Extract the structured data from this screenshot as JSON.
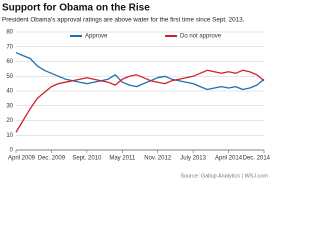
{
  "chart_data": {
    "type": "line",
    "title": "Support for Obama on the Rise",
    "subtitle": "President Obama's approval ratings are above water for the first time since Sept. 2013.",
    "source": "Source: Gallup Analytics | WSJ.com",
    "categories": [
      "April 2009",
      null,
      null,
      null,
      null,
      "Dec. 2009",
      null,
      null,
      null,
      null,
      "Sept. 2010",
      null,
      null,
      null,
      null,
      "May 2011",
      null,
      null,
      null,
      null,
      "Nov. 2012",
      null,
      null,
      null,
      null,
      "July 2013",
      null,
      null,
      null,
      null,
      "April 2014",
      null,
      null,
      null,
      null,
      "Dec. 2014"
    ],
    "series": [
      {
        "name": "Approve",
        "color": "#1f6fb2",
        "values": [
          66,
          64,
          62,
          57,
          54,
          52,
          50,
          48,
          47,
          46,
          45,
          46,
          47,
          48,
          51,
          46,
          44,
          43,
          45,
          47,
          49,
          50,
          48,
          47,
          46,
          45,
          43,
          41,
          42,
          43,
          42,
          43,
          41,
          42,
          44,
          48
        ]
      },
      {
        "name": "Do not approve",
        "color": "#d0202e",
        "values": [
          12,
          20,
          28,
          35,
          39,
          43,
          45,
          46,
          47,
          48,
          49,
          48,
          47,
          46,
          44,
          48,
          50,
          51,
          49,
          47,
          46,
          45,
          47,
          48,
          49,
          50,
          52,
          54,
          53,
          52,
          53,
          52,
          54,
          53,
          51,
          47
        ]
      }
    ],
    "ylim": [
      0,
      80
    ],
    "yticks": [
      0,
      10,
      20,
      30,
      40,
      50,
      60,
      70,
      80
    ],
    "grid": true,
    "legend": "top"
  }
}
